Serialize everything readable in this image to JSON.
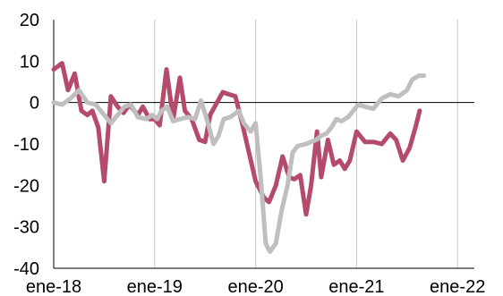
{
  "chart_data": {
    "type": "line",
    "title": "",
    "xlabel": "",
    "ylabel": "",
    "ylim": [
      -40,
      20
    ],
    "yticks": [
      20,
      10,
      0,
      -10,
      -20,
      -30,
      -40
    ],
    "xticks": [
      "ene-18",
      "ene-19",
      "ene-20",
      "ene-21",
      "ene-22"
    ],
    "xlim_months": [
      0,
      50
    ],
    "grid": "vertical at year ticks",
    "legend": "none",
    "series": [
      {
        "color": "#b54b6a",
        "points": [
          [
            0,
            8
          ],
          [
            1,
            9.5
          ],
          [
            1.7,
            3
          ],
          [
            2.5,
            7
          ],
          [
            3.3,
            -2
          ],
          [
            4,
            -3
          ],
          [
            4.6,
            -2
          ],
          [
            5.3,
            -6
          ],
          [
            6,
            -19
          ],
          [
            6.8,
            1.5
          ],
          [
            7.6,
            -1
          ],
          [
            8.3,
            -2.5
          ],
          [
            9,
            -0.5
          ],
          [
            10,
            -3
          ],
          [
            10.6,
            -1
          ],
          [
            11.4,
            -4
          ],
          [
            12,
            -4
          ],
          [
            12.6,
            -5.5
          ],
          [
            13.4,
            8
          ],
          [
            14.2,
            -4
          ],
          [
            15,
            6
          ],
          [
            15.6,
            -2
          ],
          [
            16.4,
            -4
          ],
          [
            17.3,
            -9
          ],
          [
            18,
            -9.5
          ],
          [
            18.6,
            -3
          ],
          [
            19.4,
            0
          ],
          [
            20.1,
            2.5
          ],
          [
            20.8,
            2
          ],
          [
            21.6,
            1.5
          ],
          [
            22.4,
            -5
          ],
          [
            23.2,
            -12
          ],
          [
            24,
            -19
          ],
          [
            25,
            -23
          ],
          [
            25.6,
            -24
          ],
          [
            26.4,
            -20
          ],
          [
            27.2,
            -13
          ],
          [
            28,
            -18
          ],
          [
            28.6,
            -18.5
          ],
          [
            29.3,
            -17.5
          ],
          [
            30,
            -27
          ],
          [
            30.6,
            -20
          ],
          [
            31.3,
            -7
          ],
          [
            31.8,
            -18
          ],
          [
            32.6,
            -9
          ],
          [
            33.3,
            -15
          ],
          [
            34,
            -14
          ],
          [
            34.6,
            -16
          ],
          [
            35.2,
            -14
          ],
          [
            36,
            -7
          ],
          [
            37,
            -9.5
          ],
          [
            38,
            -9.5
          ],
          [
            39,
            -10
          ],
          [
            40,
            -7.5
          ],
          [
            40.7,
            -9
          ],
          [
            41.5,
            -14
          ],
          [
            42.3,
            -11
          ],
          [
            43,
            -6
          ],
          [
            43.5,
            -2
          ]
        ]
      },
      {
        "color": "#bfbfbf",
        "points": [
          [
            0,
            0
          ],
          [
            1,
            -0.5
          ],
          [
            2,
            1
          ],
          [
            3,
            3
          ],
          [
            4,
            0
          ],
          [
            5,
            -0.5
          ],
          [
            6,
            -3
          ],
          [
            6.8,
            -5
          ],
          [
            7.6,
            -3
          ],
          [
            8.4,
            -1
          ],
          [
            9.2,
            -0.5
          ],
          [
            10,
            -3.5
          ],
          [
            11,
            -4
          ],
          [
            11.7,
            -3
          ],
          [
            12.3,
            -4
          ],
          [
            12.8,
            -2
          ],
          [
            13.5,
            -1
          ],
          [
            14.2,
            -4.5
          ],
          [
            15,
            -4
          ],
          [
            16,
            -3.5
          ],
          [
            16.8,
            -4
          ],
          [
            17.5,
            0.5
          ],
          [
            18.2,
            -4
          ],
          [
            19,
            -10
          ],
          [
            19.6,
            -8
          ],
          [
            20.2,
            -4
          ],
          [
            21,
            -3.5
          ],
          [
            22,
            -2
          ],
          [
            22.6,
            -5
          ],
          [
            23.4,
            -7
          ],
          [
            24,
            -5
          ],
          [
            24.6,
            -18
          ],
          [
            25.2,
            -34
          ],
          [
            25.7,
            -36
          ],
          [
            26.4,
            -34
          ],
          [
            27.1,
            -26
          ],
          [
            27.8,
            -20
          ],
          [
            28.4,
            -12
          ],
          [
            29,
            -10.5
          ],
          [
            30,
            -10
          ],
          [
            30.6,
            -9.5
          ],
          [
            31.2,
            -9
          ],
          [
            31.8,
            -8
          ],
          [
            32.4,
            -7.5
          ],
          [
            33,
            -6
          ],
          [
            33.6,
            -4
          ],
          [
            34.2,
            -4.5
          ],
          [
            35,
            -3.5
          ],
          [
            35.6,
            -2
          ],
          [
            36.2,
            -0.5
          ],
          [
            37,
            -1
          ],
          [
            38,
            -1.5
          ],
          [
            39,
            1
          ],
          [
            40,
            2
          ],
          [
            41,
            1.5
          ],
          [
            42,
            3
          ],
          [
            42.6,
            5.5
          ],
          [
            43.4,
            6.5
          ],
          [
            44,
            6.5
          ]
        ]
      }
    ]
  }
}
